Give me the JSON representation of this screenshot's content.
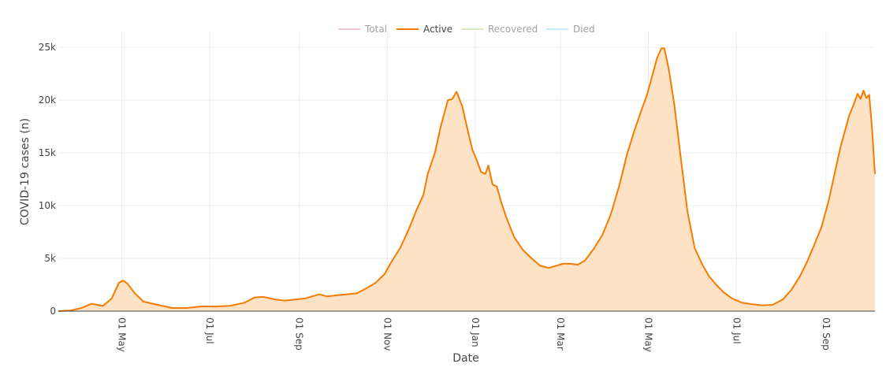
{
  "chart_data": {
    "type": "area",
    "title": "",
    "xlabel": "Date",
    "ylabel": "COVID-19 cases (n)",
    "x_range": [
      "2020-03-18",
      "2021-10-05"
    ],
    "ylim": [
      0,
      26500
    ],
    "grid": true,
    "legend_placement": "top-center",
    "y_ticks": [
      {
        "value": 0,
        "label": "0"
      },
      {
        "value": 5000,
        "label": "5k"
      },
      {
        "value": 10000,
        "label": "10k"
      },
      {
        "value": 15000,
        "label": "15k"
      },
      {
        "value": 20000,
        "label": "20k"
      },
      {
        "value": 25000,
        "label": "25k"
      }
    ],
    "x_ticks": [
      {
        "date": "2020-05-01",
        "label": "01 May"
      },
      {
        "date": "2020-07-01",
        "label": "01 Jul"
      },
      {
        "date": "2020-09-01",
        "label": "01 Sep"
      },
      {
        "date": "2020-11-01",
        "label": "01 Nov"
      },
      {
        "date": "2021-01-01",
        "label": "01 Jan"
      },
      {
        "date": "2021-03-01",
        "label": "01 Mar"
      },
      {
        "date": "2021-05-01",
        "label": "01 May"
      },
      {
        "date": "2021-07-01",
        "label": "01 Jul"
      },
      {
        "date": "2021-09-01",
        "label": "01 Sep"
      }
    ],
    "legend": [
      {
        "name": "Total",
        "color": "#f48fb1",
        "visible": false
      },
      {
        "name": "Active",
        "color": "#f57c00",
        "visible": true
      },
      {
        "name": "Recovered",
        "color": "#aed581",
        "visible": false
      },
      {
        "name": "Died",
        "color": "#80deea",
        "visible": false
      }
    ],
    "series": [
      {
        "name": "Active",
        "color": "#f57c00",
        "fill": "#fde2c6",
        "points": [
          [
            "2020-03-18",
            0
          ],
          [
            "2020-03-26",
            50
          ],
          [
            "2020-04-03",
            300
          ],
          [
            "2020-04-10",
            700
          ],
          [
            "2020-04-18",
            500
          ],
          [
            "2020-04-24",
            1200
          ],
          [
            "2020-04-29",
            2700
          ],
          [
            "2020-05-02",
            2900
          ],
          [
            "2020-05-05",
            2600
          ],
          [
            "2020-05-10",
            1700
          ],
          [
            "2020-05-16",
            900
          ],
          [
            "2020-05-26",
            600
          ],
          [
            "2020-06-05",
            300
          ],
          [
            "2020-06-15",
            300
          ],
          [
            "2020-06-25",
            450
          ],
          [
            "2020-07-05",
            450
          ],
          [
            "2020-07-15",
            500
          ],
          [
            "2020-07-25",
            800
          ],
          [
            "2020-08-01",
            1300
          ],
          [
            "2020-08-07",
            1350
          ],
          [
            "2020-08-16",
            1100
          ],
          [
            "2020-08-22",
            1000
          ],
          [
            "2020-08-29",
            1100
          ],
          [
            "2020-09-05",
            1200
          ],
          [
            "2020-09-10",
            1400
          ],
          [
            "2020-09-15",
            1600
          ],
          [
            "2020-09-20",
            1400
          ],
          [
            "2020-09-27",
            1500
          ],
          [
            "2020-10-04",
            1600
          ],
          [
            "2020-10-11",
            1700
          ],
          [
            "2020-10-18",
            2200
          ],
          [
            "2020-10-24",
            2700
          ],
          [
            "2020-10-30",
            3500
          ],
          [
            "2020-11-04",
            4700
          ],
          [
            "2020-11-10",
            6000
          ],
          [
            "2020-11-16",
            7800
          ],
          [
            "2020-11-21",
            9500
          ],
          [
            "2020-11-26",
            11000
          ],
          [
            "2020-11-29",
            13000
          ],
          [
            "2020-12-04",
            15000
          ],
          [
            "2020-12-08",
            17500
          ],
          [
            "2020-12-13",
            20000
          ],
          [
            "2020-12-16",
            20100
          ],
          [
            "2020-12-19",
            20800
          ],
          [
            "2020-12-23",
            19400
          ],
          [
            "2020-12-27",
            17000
          ],
          [
            "2020-12-30",
            15300
          ],
          [
            "2021-01-02",
            14300
          ],
          [
            "2021-01-05",
            13200
          ],
          [
            "2021-01-08",
            13000
          ],
          [
            "2021-01-10",
            13800
          ],
          [
            "2021-01-13",
            12000
          ],
          [
            "2021-01-16",
            11800
          ],
          [
            "2021-01-19",
            10300
          ],
          [
            "2021-01-23",
            8700
          ],
          [
            "2021-01-28",
            7000
          ],
          [
            "2021-02-03",
            5800
          ],
          [
            "2021-02-09",
            5000
          ],
          [
            "2021-02-15",
            4300
          ],
          [
            "2021-02-21",
            4100
          ],
          [
            "2021-02-26",
            4300
          ],
          [
            "2021-03-03",
            4500
          ],
          [
            "2021-03-08",
            4500
          ],
          [
            "2021-03-13",
            4400
          ],
          [
            "2021-03-18",
            4800
          ],
          [
            "2021-03-24",
            5900
          ],
          [
            "2021-03-30",
            7200
          ],
          [
            "2021-04-05",
            9200
          ],
          [
            "2021-04-11",
            12000
          ],
          [
            "2021-04-16",
            14800
          ],
          [
            "2021-04-21",
            17000
          ],
          [
            "2021-04-26",
            19000
          ],
          [
            "2021-04-30",
            20500
          ],
          [
            "2021-05-04",
            22500
          ],
          [
            "2021-05-07",
            24000
          ],
          [
            "2021-05-10",
            24900
          ],
          [
            "2021-05-12",
            24900
          ],
          [
            "2021-05-15",
            23000
          ],
          [
            "2021-05-19",
            19500
          ],
          [
            "2021-05-23",
            15000
          ],
          [
            "2021-05-28",
            9500
          ],
          [
            "2021-06-02",
            6000
          ],
          [
            "2021-06-07",
            4500
          ],
          [
            "2021-06-12",
            3300
          ],
          [
            "2021-06-17",
            2500
          ],
          [
            "2021-06-22",
            1800
          ],
          [
            "2021-06-28",
            1200
          ],
          [
            "2021-07-05",
            800
          ],
          [
            "2021-07-12",
            650
          ],
          [
            "2021-07-19",
            550
          ],
          [
            "2021-07-26",
            600
          ],
          [
            "2021-08-02",
            1100
          ],
          [
            "2021-08-08",
            2000
          ],
          [
            "2021-08-14",
            3300
          ],
          [
            "2021-08-19",
            4700
          ],
          [
            "2021-08-24",
            6300
          ],
          [
            "2021-08-29",
            8000
          ],
          [
            "2021-09-03",
            10500
          ],
          [
            "2021-09-07",
            13000
          ],
          [
            "2021-09-11",
            15500
          ],
          [
            "2021-09-14",
            17000
          ],
          [
            "2021-09-17",
            18500
          ],
          [
            "2021-09-20",
            19500
          ],
          [
            "2021-09-23",
            20600
          ],
          [
            "2021-09-25",
            20100
          ],
          [
            "2021-09-27",
            20900
          ],
          [
            "2021-09-29",
            20200
          ],
          [
            "2021-10-01",
            20500
          ],
          [
            "2021-10-03",
            17300
          ],
          [
            "2021-10-05",
            13000
          ]
        ]
      }
    ]
  }
}
